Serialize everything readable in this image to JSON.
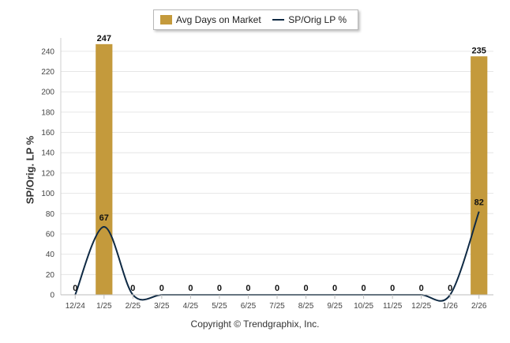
{
  "chart_data": {
    "type": "bar",
    "categories": [
      "12/24",
      "1/25",
      "2/25",
      "3/25",
      "4/25",
      "5/25",
      "6/25",
      "7/25",
      "8/25",
      "9/25",
      "10/25",
      "11/25",
      "12/25",
      "1/26",
      "2/26"
    ],
    "series": [
      {
        "name": "Avg Days on Market",
        "type": "bar",
        "color": "#c49a3c",
        "values": [
          0,
          247,
          0,
          0,
          0,
          0,
          0,
          0,
          0,
          0,
          0,
          0,
          0,
          0,
          235
        ],
        "labels": [
          "",
          "247",
          "",
          "",
          "",
          "",
          "",
          "",
          "",
          "",
          "",
          "",
          "",
          "",
          "235"
        ]
      },
      {
        "name": "SP/Orig LP %",
        "type": "line",
        "color": "#0f2a44",
        "values": [
          0,
          67,
          0,
          0,
          0,
          0,
          0,
          0,
          0,
          0,
          0,
          0,
          0,
          0,
          82
        ]
      }
    ],
    "ylabel": "SP/Orig. LP %",
    "yticks": [
      "0",
      "20",
      "40",
      "60",
      "80",
      "100",
      "120",
      "140",
      "160",
      "180",
      "200",
      "220",
      "240"
    ],
    "ylim": [
      0,
      250
    ],
    "grid": true,
    "legend": "top-center"
  },
  "footer": {
    "copyright": "Copyright © Trendgraphix, Inc."
  }
}
